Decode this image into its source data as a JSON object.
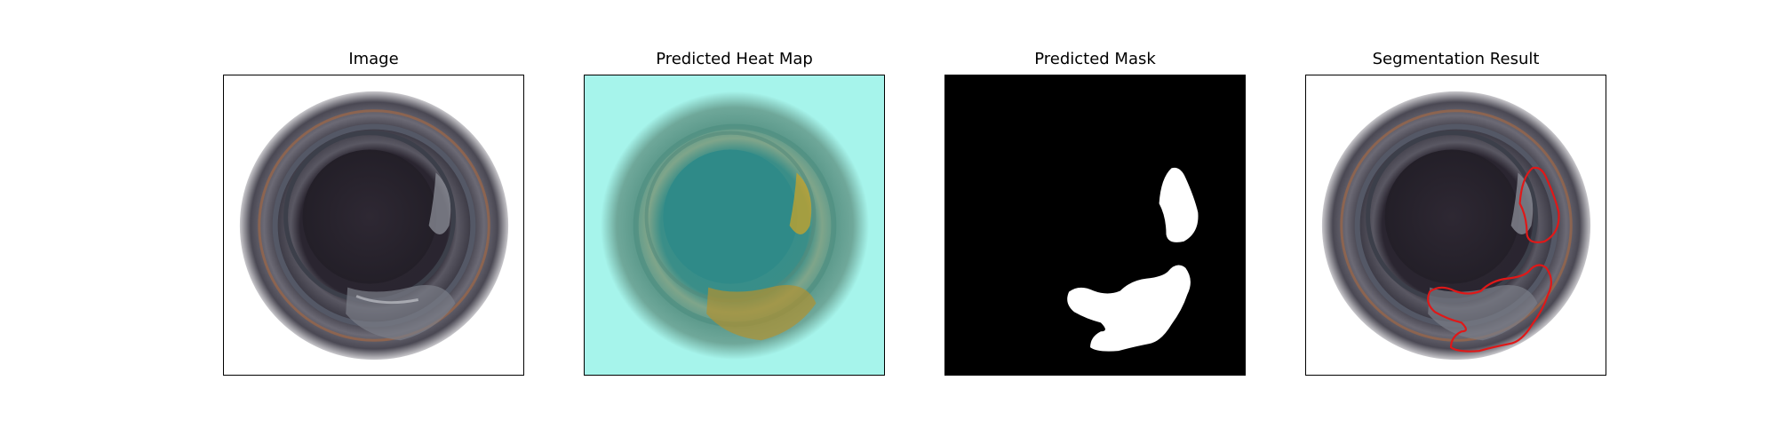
{
  "panels": [
    {
      "title": "Image"
    },
    {
      "title": "Predicted Heat Map"
    },
    {
      "title": "Predicted Mask"
    },
    {
      "title": "Segmentation Result"
    }
  ],
  "colors": {
    "heatmap_background": "#a6f4eb",
    "heatmap_center": "#2f8f8d",
    "heatmap_hot": "#c8a32a",
    "mask_background": "#000000",
    "mask_foreground": "#ffffff",
    "contour": "#e01818"
  }
}
